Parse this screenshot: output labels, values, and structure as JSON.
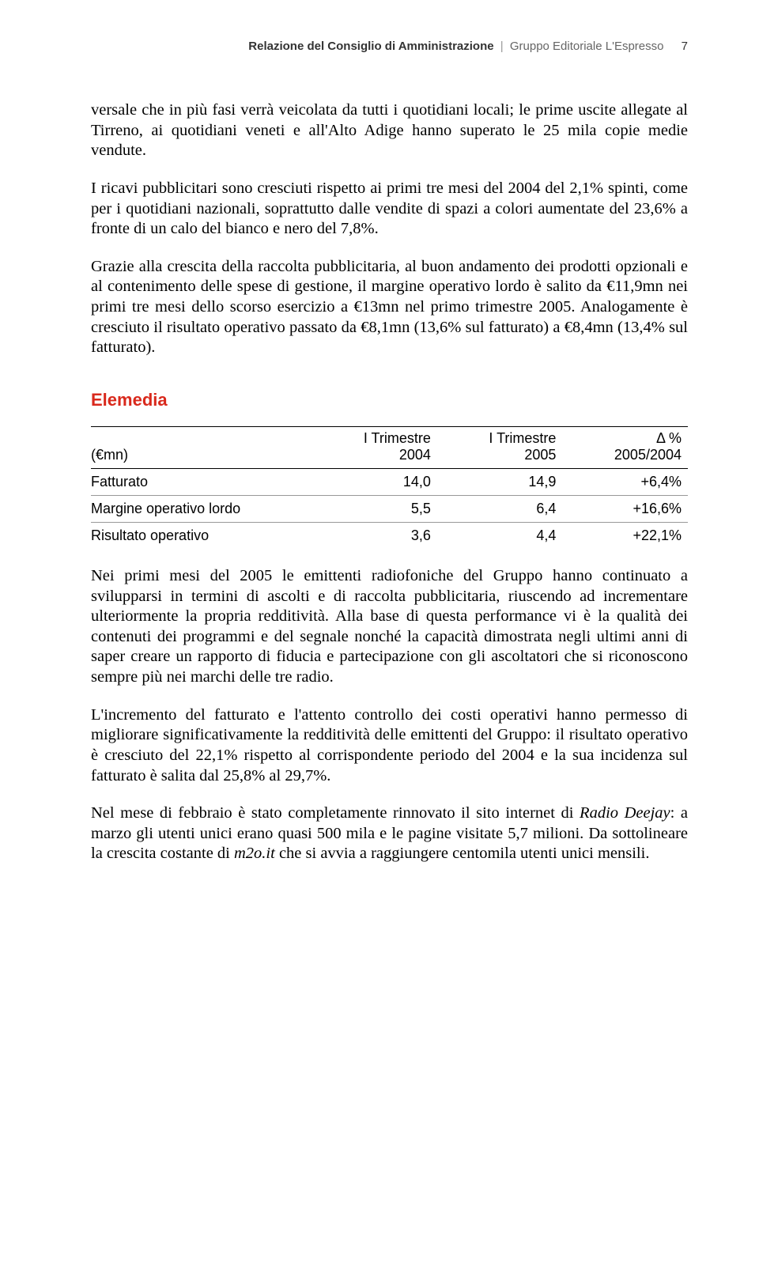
{
  "header": {
    "section": "Relazione del Consiglio di Amministrazione",
    "company": "Gruppo Editoriale L'Espresso",
    "page": "7"
  },
  "paragraphs": {
    "p1": "versale che in più fasi verrà veicolata da tutti i quotidiani locali; le prime uscite allegate al Tirreno, ai quotidiani veneti e all'Alto Adige hanno superato le 25 mila copie medie vendute.",
    "p2": "I ricavi pubblicitari sono cresciuti rispetto ai primi tre mesi del 2004 del 2,1% spinti, come per i quotidiani nazionali, soprattutto dalle vendite di spazi a colori aumentate del 23,6% a fronte di un calo del bianco e nero del 7,8%.",
    "p3": "Grazie alla crescita della raccolta pubblicitaria, al buon andamento dei prodotti opzionali e al contenimento delle spese di gestione, il margine operativo lordo è salito da €11,9mn nei primi tre mesi dello scorso esercizio a €13mn nel primo trimestre 2005. Analogamente è cresciuto il risultato operativo passato da €8,1mn (13,6% sul fatturato) a €8,4mn (13,4% sul fatturato).",
    "p4": "Nei primi mesi del 2005 le emittenti radiofoniche del Gruppo hanno continuato a svilupparsi in termini di ascolti e di raccolta pubblicitaria, riuscendo ad incrementare ulteriormente la propria redditività. Alla base di questa performance vi è la qualità dei contenuti dei programmi e del segnale nonché la capacità dimostrata negli ultimi anni di saper creare un rapporto di fiducia e partecipazione con gli ascoltatori che si riconoscono sempre più nei marchi delle tre radio.",
    "p5": "L'incremento del fatturato e l'attento controllo dei costi operativi hanno permesso di migliorare significativamente la redditività delle emittenti del Gruppo: il risultato operativo è cresciuto del 22,1% rispetto al corrispondente periodo del 2004 e la sua incidenza sul fatturato è salita dal 25,8% al 29,7%.",
    "p6_a": "Nel mese di febbraio è stato completamente rinnovato il sito internet di ",
    "p6_i1": "Radio Deejay",
    "p6_b": ": a marzo gli utenti unici erano quasi 500 mila e le pagine visitate 5,7 milioni. Da sottolineare la crescita costante di ",
    "p6_i2": "m2o.it",
    "p6_c": " che si avvia a raggiungere centomila utenti unici mensili."
  },
  "section": {
    "title": "Elemedia"
  },
  "table": {
    "headers": {
      "unit_top": "",
      "unit_bottom": "(€mn)",
      "col1_top": "I Trimestre",
      "col1_bottom": "2004",
      "col2_top": "I Trimestre",
      "col2_bottom": "2005",
      "col3_top": "Δ %",
      "col3_bottom": "2005/2004"
    },
    "rows": [
      {
        "label": "Fatturato",
        "v1": "14,0",
        "v2": "14,9",
        "v3": "+6,4%"
      },
      {
        "label": "Margine operativo lordo",
        "v1": "5,5",
        "v2": "6,4",
        "v3": "+16,6%"
      },
      {
        "label": "Risultato operativo",
        "v1": "3,6",
        "v2": "4,4",
        "v3": "+22,1%"
      }
    ]
  }
}
